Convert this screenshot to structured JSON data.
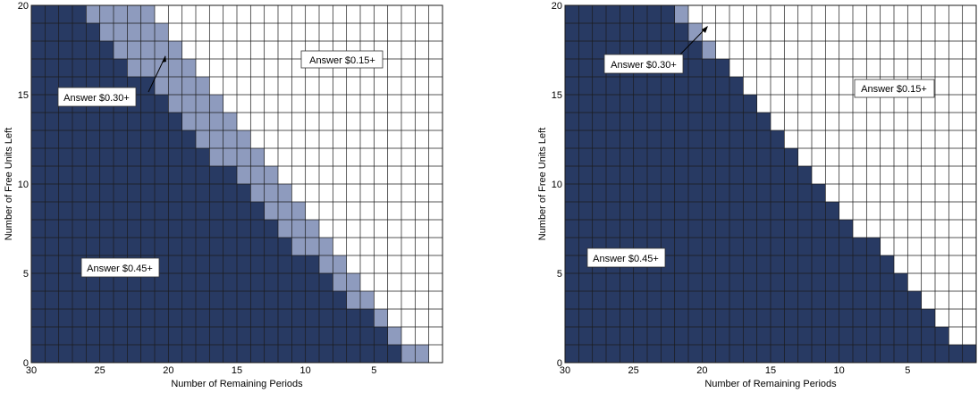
{
  "colors": {
    "dark": "#283a63",
    "light": "#8e9bbe",
    "empty": "#ffffff",
    "grid": "#1b1b1b"
  },
  "chart_data": [
    {
      "type": "heatmap",
      "title": "",
      "xlabel": "Number of Remaining Periods",
      "ylabel": "Number of Free Units Left",
      "xlim": [
        30,
        0
      ],
      "ylim": [
        0,
        20
      ],
      "x_ticks": [
        30,
        25,
        20,
        15,
        10,
        5
      ],
      "y_ticks": [
        0,
        5,
        10,
        15,
        20
      ],
      "grid": true,
      "columns_by_remaining_period": [
        29,
        28,
        27,
        26,
        25,
        24,
        23,
        22,
        21,
        20,
        19,
        18,
        17,
        16,
        15,
        14,
        13,
        12,
        11,
        10,
        9,
        8,
        7,
        6,
        5,
        4,
        3,
        2,
        1,
        0
      ],
      "dark_top_units": [
        20,
        20,
        20,
        20,
        19,
        18,
        17,
        16,
        16,
        15,
        14,
        13,
        12,
        11,
        11,
        10,
        9,
        8,
        7,
        6,
        6,
        5,
        4,
        3,
        3,
        2,
        1,
        0,
        0,
        0
      ],
      "light_top_units": [
        20,
        20,
        20,
        20,
        20,
        20,
        20,
        20,
        20,
        19,
        18,
        17,
        16,
        15,
        14,
        13,
        12,
        11,
        10,
        9,
        8,
        7,
        6,
        5,
        4,
        3,
        2,
        1,
        1,
        0
      ],
      "regions": [
        {
          "label": "Answer $0.45+",
          "color": "dark"
        },
        {
          "label": "Answer $0.30+",
          "color": "light"
        },
        {
          "label": "Answer $0.15+",
          "color": "empty"
        }
      ]
    },
    {
      "type": "heatmap",
      "title": "",
      "xlabel": "Number of Remaining Periods",
      "ylabel": "Number of Free Units Left",
      "xlim": [
        30,
        0
      ],
      "ylim": [
        0,
        20
      ],
      "x_ticks": [
        30,
        25,
        20,
        15,
        10,
        5
      ],
      "y_ticks": [
        0,
        5,
        10,
        15,
        20
      ],
      "grid": true,
      "columns_by_remaining_period": [
        29,
        28,
        27,
        26,
        25,
        24,
        23,
        22,
        21,
        20,
        19,
        18,
        17,
        16,
        15,
        14,
        13,
        12,
        11,
        10,
        9,
        8,
        7,
        6,
        5,
        4,
        3,
        2,
        1,
        0
      ],
      "dark_top_units": [
        20,
        20,
        20,
        20,
        20,
        20,
        20,
        20,
        19,
        18,
        17,
        17,
        16,
        15,
        14,
        13,
        12,
        11,
        10,
        9,
        8,
        7,
        7,
        6,
        5,
        4,
        3,
        2,
        1,
        1
      ],
      "light_top_units": [
        20,
        20,
        20,
        20,
        20,
        20,
        20,
        20,
        20,
        19,
        18,
        17,
        16,
        15,
        14,
        13,
        12,
        11,
        10,
        9,
        8,
        7,
        7,
        6,
        5,
        4,
        3,
        2,
        1,
        1
      ],
      "regions": [
        {
          "label": "Answer $0.45+",
          "color": "dark"
        },
        {
          "label": "Answer $0.30+",
          "color": "light"
        },
        {
          "label": "Answer $0.15+",
          "color": "empty"
        }
      ]
    }
  ]
}
